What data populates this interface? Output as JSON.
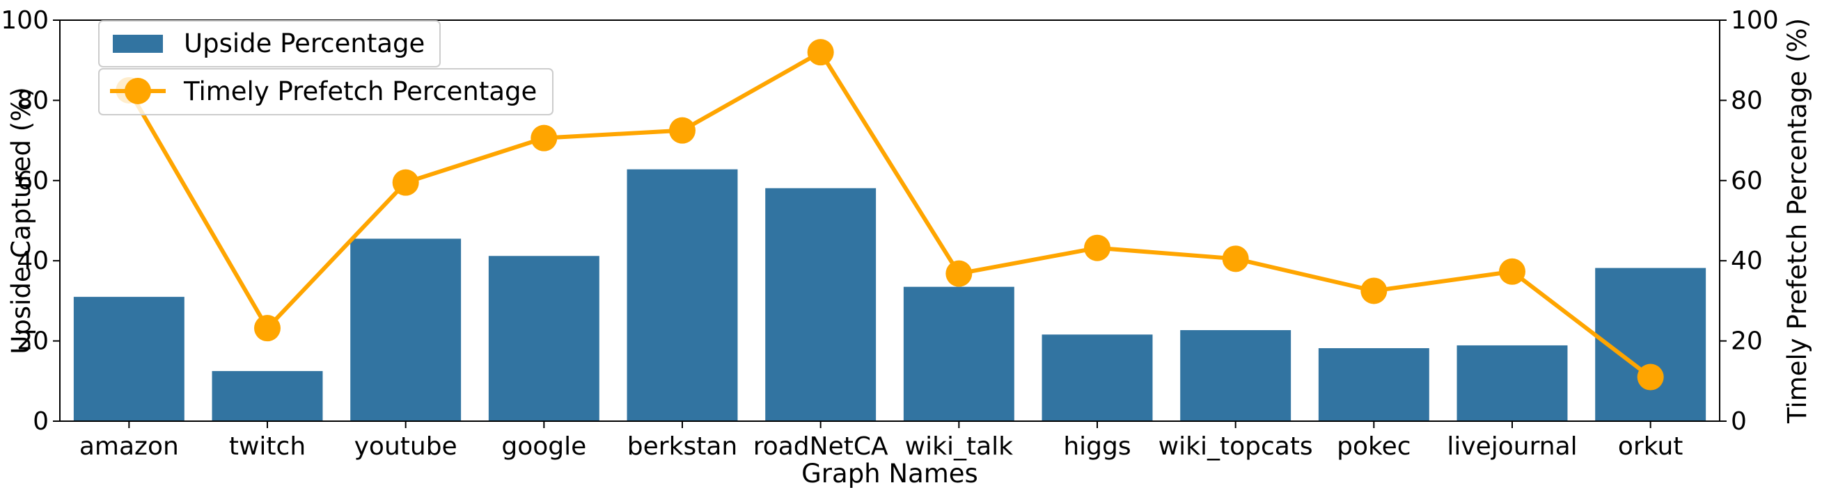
{
  "chart_data": {
    "type": "bar",
    "categories": [
      "amazon",
      "twitch",
      "youtube",
      "google",
      "berkstan",
      "roadNetCA",
      "wiki_talk",
      "higgs",
      "wiki_topcats",
      "pokec",
      "livejournal",
      "orkut"
    ],
    "series": [
      {
        "name": "Upside Percentage",
        "type": "bar",
        "axis": "left",
        "color": "#3274a1",
        "values": [
          31,
          12.5,
          45.5,
          41.2,
          62.8,
          58.1,
          33.5,
          21.6,
          22.7,
          18.2,
          18.9,
          38.2
        ]
      },
      {
        "name": "Timely Prefetch Percentage",
        "type": "line",
        "axis": "right",
        "color": "#ffa500",
        "values": [
          82.5,
          23.2,
          59.5,
          70.6,
          72.5,
          92,
          36.8,
          43.2,
          40.5,
          32.5,
          37.3,
          11
        ]
      }
    ],
    "xlabel": "Graph Names",
    "ylabel": "Upside Captured (%)",
    "y2label": "Timely Prefetch Percentage (%)",
    "ylim": [
      0,
      100
    ],
    "y2lim": [
      0,
      100
    ],
    "yticks": [
      0,
      20,
      40,
      60,
      80,
      100
    ],
    "y2ticks": [
      0,
      20,
      40,
      60,
      80,
      100
    ],
    "grid": false,
    "legend": "top-left"
  }
}
